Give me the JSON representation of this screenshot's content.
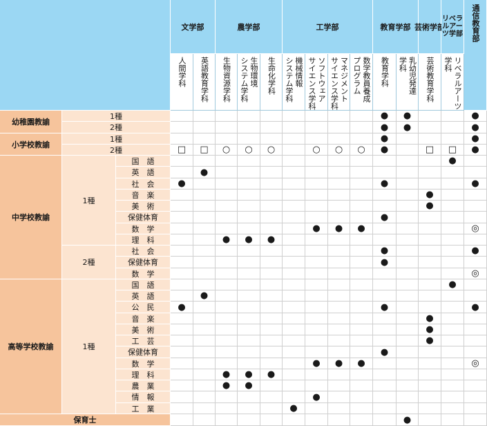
{
  "faculties": [
    {
      "name": "文学部",
      "cols": 2
    },
    {
      "name": "農学部",
      "cols": 3
    },
    {
      "name": "工学部",
      "cols": 4
    },
    {
      "name": "教育学部",
      "cols": 2
    },
    {
      "name": "芸術学部",
      "cols": 1
    },
    {
      "name": "リベラルアーツ学部",
      "cols": 1
    },
    {
      "name": "通信教育部",
      "cols": 1
    }
  ],
  "departments": [
    [
      "人間学科"
    ],
    [
      "英語教育学科"
    ],
    [
      "生物資源学科"
    ],
    [
      "生物環境",
      "システム学科"
    ],
    [
      "生命化学科"
    ],
    [
      "機械情報",
      "システム学科"
    ],
    [
      "ソフトウェア",
      "サイエンス学科"
    ],
    [
      "マネジメント",
      "サイエンス学科"
    ],
    [
      "数学教員養成",
      "プログラム"
    ],
    [
      "教育学科"
    ],
    [
      "乳幼児発達",
      "学科"
    ],
    [
      "芸術教育学科"
    ],
    [
      "リベラルアーツ",
      "学科"
    ],
    [
      ""
    ]
  ],
  "licenses": [
    {
      "name": "幼稚園教諭",
      "groups": [
        {
          "grade": "",
          "rows": [
            {
              "label": "1種",
              "marks": [
                "",
                "",
                "",
                "",
                "",
                "",
                "",
                "",
                "",
                "●",
                "●",
                "",
                "",
                "●"
              ]
            },
            {
              "label": "2種",
              "marks": [
                "",
                "",
                "",
                "",
                "",
                "",
                "",
                "",
                "",
                "●",
                "●",
                "",
                "",
                "●"
              ]
            }
          ]
        }
      ]
    },
    {
      "name": "小学校教諭",
      "groups": [
        {
          "grade": "",
          "rows": [
            {
              "label": "1種",
              "marks": [
                "",
                "",
                "",
                "",
                "",
                "",
                "",
                "",
                "",
                "●",
                "",
                "",
                "",
                "●"
              ]
            },
            {
              "label": "2種",
              "marks": [
                "□",
                "□",
                "○",
                "○",
                "○",
                "",
                "○",
                "○",
                "○",
                "●",
                "",
                "□",
                "□",
                "●"
              ]
            }
          ]
        }
      ]
    },
    {
      "name": "中学校教諭",
      "groups": [
        {
          "grade": "1種",
          "rows": [
            {
              "label": "国　語",
              "marks": [
                "",
                "",
                "",
                "",
                "",
                "",
                "",
                "",
                "",
                "",
                "",
                "",
                "●",
                ""
              ]
            },
            {
              "label": "英　語",
              "marks": [
                "",
                "●",
                "",
                "",
                "",
                "",
                "",
                "",
                "",
                "",
                "",
                "",
                "",
                ""
              ]
            },
            {
              "label": "社　会",
              "marks": [
                "●",
                "",
                "",
                "",
                "",
                "",
                "",
                "",
                "",
                "●",
                "",
                "",
                "",
                "●"
              ]
            },
            {
              "label": "音　楽",
              "marks": [
                "",
                "",
                "",
                "",
                "",
                "",
                "",
                "",
                "",
                "",
                "",
                "●",
                "",
                ""
              ]
            },
            {
              "label": "美　術",
              "marks": [
                "",
                "",
                "",
                "",
                "",
                "",
                "",
                "",
                "",
                "",
                "",
                "●",
                "",
                ""
              ]
            },
            {
              "label": "保健体育",
              "marks": [
                "",
                "",
                "",
                "",
                "",
                "",
                "",
                "",
                "",
                "●",
                "",
                "",
                "",
                ""
              ]
            },
            {
              "label": "数　学",
              "marks": [
                "",
                "",
                "",
                "",
                "",
                "",
                "●",
                "●",
                "●",
                "",
                "",
                "",
                "",
                "◎"
              ]
            },
            {
              "label": "理　科",
              "marks": [
                "",
                "",
                "●",
                "●",
                "●",
                "",
                "",
                "",
                "",
                "",
                "",
                "",
                "",
                ""
              ]
            }
          ]
        },
        {
          "grade": "2種",
          "rows": [
            {
              "label": "社　会",
              "marks": [
                "",
                "",
                "",
                "",
                "",
                "",
                "",
                "",
                "",
                "●",
                "",
                "",
                "",
                "●"
              ]
            },
            {
              "label": "保健体育",
              "marks": [
                "",
                "",
                "",
                "",
                "",
                "",
                "",
                "",
                "",
                "●",
                "",
                "",
                "",
                ""
              ]
            },
            {
              "label": "数　学",
              "marks": [
                "",
                "",
                "",
                "",
                "",
                "",
                "",
                "",
                "",
                "",
                "",
                "",
                "",
                "◎"
              ]
            }
          ]
        }
      ]
    },
    {
      "name": "高等学校教諭",
      "groups": [
        {
          "grade": "1種",
          "rows": [
            {
              "label": "国　語",
              "marks": [
                "",
                "",
                "",
                "",
                "",
                "",
                "",
                "",
                "",
                "",
                "",
                "",
                "●",
                ""
              ]
            },
            {
              "label": "英　語",
              "marks": [
                "",
                "●",
                "",
                "",
                "",
                "",
                "",
                "",
                "",
                "",
                "",
                "",
                "",
                ""
              ]
            },
            {
              "label": "公　民",
              "marks": [
                "●",
                "",
                "",
                "",
                "",
                "",
                "",
                "",
                "",
                "●",
                "",
                "",
                "",
                "●"
              ]
            },
            {
              "label": "音　楽",
              "marks": [
                "",
                "",
                "",
                "",
                "",
                "",
                "",
                "",
                "",
                "",
                "",
                "●",
                "",
                ""
              ]
            },
            {
              "label": "美　術",
              "marks": [
                "",
                "",
                "",
                "",
                "",
                "",
                "",
                "",
                "",
                "",
                "",
                "●",
                "",
                ""
              ]
            },
            {
              "label": "工　芸",
              "marks": [
                "",
                "",
                "",
                "",
                "",
                "",
                "",
                "",
                "",
                "",
                "",
                "●",
                "",
                ""
              ]
            },
            {
              "label": "保健体育",
              "marks": [
                "",
                "",
                "",
                "",
                "",
                "",
                "",
                "",
                "",
                "●",
                "",
                "",
                "",
                ""
              ]
            },
            {
              "label": "数　学",
              "marks": [
                "",
                "",
                "",
                "",
                "",
                "",
                "●",
                "●",
                "●",
                "",
                "",
                "",
                "",
                "◎"
              ]
            },
            {
              "label": "理　科",
              "marks": [
                "",
                "",
                "●",
                "●",
                "●",
                "",
                "",
                "",
                "",
                "",
                "",
                "",
                "",
                ""
              ]
            },
            {
              "label": "農　業",
              "marks": [
                "",
                "",
                "●",
                "●",
                "",
                "",
                "",
                "",
                "",
                "",
                "",
                "",
                "",
                ""
              ]
            },
            {
              "label": "情　報",
              "marks": [
                "",
                "",
                "",
                "",
                "",
                "",
                "●",
                "",
                "",
                "",
                "",
                "",
                "",
                ""
              ]
            },
            {
              "label": "工　業",
              "marks": [
                "",
                "",
                "",
                "",
                "",
                "●",
                "",
                "",
                "",
                "",
                "",
                "",
                "",
                ""
              ]
            }
          ]
        }
      ]
    }
  ],
  "nursery": {
    "name": "保育士",
    "marks": [
      "",
      "",
      "",
      "",
      "",
      "",
      "",
      "",
      "",
      "",
      "●",
      "",
      "",
      ""
    ]
  }
}
